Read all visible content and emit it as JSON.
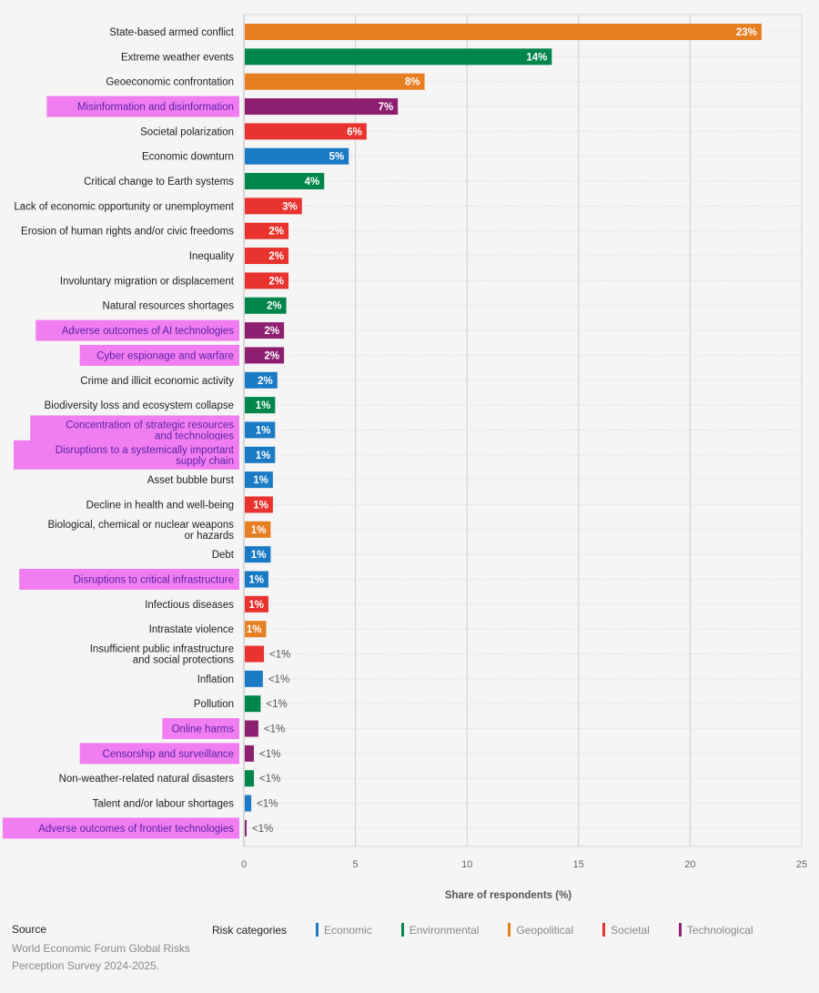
{
  "chart_data": {
    "type": "bar",
    "orientation": "horizontal",
    "xlabel": "Share of respondents (%)",
    "xlim": [
      0,
      25
    ],
    "xticks": [
      0,
      5,
      10,
      15,
      20,
      25
    ],
    "grid": "vertical",
    "categories": [
      "State-based armed conflict",
      "Extreme weather events",
      "Geoeconomic confrontation",
      "Misinformation and disinformation",
      "Societal polarization",
      "Economic downturn",
      "Critical change to Earth systems",
      "Lack of economic opportunity or unemployment",
      "Erosion of human rights and/or civic freedoms",
      "Inequality",
      "Involuntary migration or displacement",
      "Natural resources shortages",
      "Adverse outcomes of AI technologies",
      "Cyber espionage and warfare",
      "Crime and illicit economic activity",
      "Biodiversity loss and ecosystem collapse",
      "Concentration of strategic resources\nand technologies",
      "Disruptions to a systemically important\nsupply chain",
      "Asset bubble burst",
      "Decline in health and well-being",
      "Biological, chemical or nuclear weapons\nor hazards",
      "Debt",
      "Disruptions to critical infrastructure",
      "Infectious diseases",
      "Intrastate violence",
      "Insufficient public infrastructure\nand social protections",
      "Inflation",
      "Pollution",
      "Online harms",
      "Censorship and surveillance",
      "Non-weather-related natural disasters",
      "Talent and/or labour shortages",
      "Adverse outcomes of frontier technologies"
    ],
    "values": [
      23.2,
      13.8,
      8.1,
      6.9,
      5.5,
      4.7,
      3.6,
      2.6,
      2.0,
      2.0,
      2.0,
      1.9,
      1.8,
      1.8,
      1.5,
      1.4,
      1.4,
      1.4,
      1.3,
      1.3,
      1.2,
      1.2,
      1.1,
      1.1,
      1.0,
      0.9,
      0.85,
      0.75,
      0.65,
      0.45,
      0.45,
      0.33,
      0.12
    ],
    "data_labels": [
      "23%",
      "14%",
      "8%",
      "7%",
      "6%",
      "5%",
      "4%",
      "3%",
      "2%",
      "2%",
      "2%",
      "2%",
      "2%",
      "2%",
      "2%",
      "1%",
      "1%",
      "1%",
      "1%",
      "1%",
      "1%",
      "1%",
      "1%",
      "1%",
      "1%",
      "<1%",
      "<1%",
      "<1%",
      "<1%",
      "<1%",
      "<1%",
      "<1%",
      "<1%"
    ],
    "category_group": [
      "Geopolitical",
      "Environmental",
      "Geopolitical",
      "Technological",
      "Societal",
      "Economic",
      "Environmental",
      "Societal",
      "Societal",
      "Societal",
      "Societal",
      "Environmental",
      "Technological",
      "Technological",
      "Economic",
      "Environmental",
      "Economic",
      "Economic",
      "Economic",
      "Societal",
      "Geopolitical",
      "Economic",
      "Economic",
      "Societal",
      "Geopolitical",
      "Societal",
      "Economic",
      "Environmental",
      "Technological",
      "Technological",
      "Environmental",
      "Economic",
      "Technological"
    ],
    "highlighted": [
      false,
      false,
      false,
      true,
      false,
      false,
      false,
      false,
      false,
      false,
      false,
      false,
      true,
      true,
      false,
      false,
      true,
      true,
      false,
      false,
      false,
      false,
      true,
      false,
      false,
      false,
      false,
      false,
      true,
      true,
      false,
      false,
      true
    ],
    "colors": {
      "Economic": "#1a7ac4",
      "Environmental": "#00864b",
      "Geopolitical": "#e67e22",
      "Societal": "#e8332f",
      "Technological": "#8e2071"
    },
    "highlight_color": "#f07ef0",
    "highlight_text_color": "#5b1fa8",
    "legend": {
      "title": "Risk categories",
      "entries": [
        "Economic",
        "Environmental",
        "Geopolitical",
        "Societal",
        "Technological"
      ],
      "placement": "bottom"
    }
  },
  "source": {
    "title": "Source",
    "text": "World Economic Forum Global Risks Perception Survey 2024-2025."
  }
}
